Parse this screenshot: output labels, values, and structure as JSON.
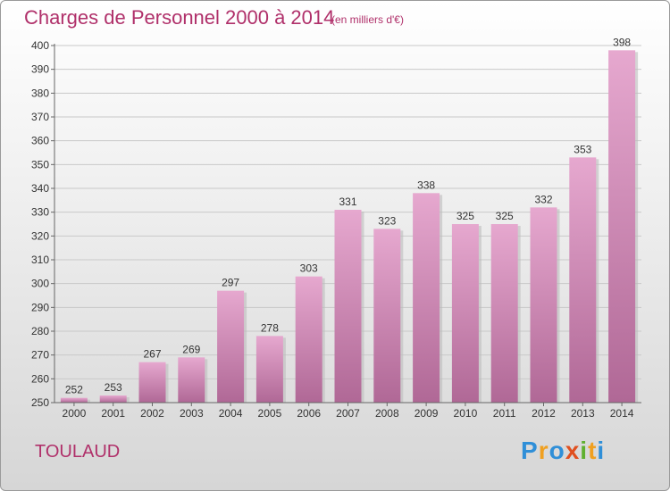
{
  "header": {
    "title": "Charges de Personnel 2000 à 2014",
    "subtitle": "(en milliers d'€)"
  },
  "footer": {
    "place": "TOULAUD",
    "logo_letters": [
      {
        "char": "P",
        "color": "#2f8fd8"
      },
      {
        "char": "r",
        "color": "#f0a020"
      },
      {
        "char": "o",
        "color": "#2f8fd8"
      },
      {
        "char": "x",
        "color": "#e05020"
      },
      {
        "char": "i",
        "color": "#60b030"
      },
      {
        "char": "t",
        "color": "#f0a020"
      },
      {
        "char": "i",
        "color": "#2f8fd8"
      }
    ]
  },
  "chart_data": {
    "type": "bar",
    "categories": [
      "2000",
      "2001",
      "2002",
      "2003",
      "2004",
      "2005",
      "2006",
      "2007",
      "2008",
      "2009",
      "2010",
      "2011",
      "2012",
      "2013",
      "2014"
    ],
    "values": [
      252,
      253,
      267,
      269,
      297,
      278,
      303,
      331,
      323,
      338,
      325,
      325,
      332,
      353,
      398
    ],
    "title": "Charges de Personnel 2000 à 2014",
    "subtitle": "(en milliers d'€)",
    "xlabel": "",
    "ylabel": "",
    "ylim": [
      250,
      400
    ],
    "yticks": [
      250,
      260,
      270,
      280,
      290,
      300,
      310,
      320,
      330,
      340,
      350,
      360,
      370,
      380,
      390,
      400
    ],
    "grid": true,
    "bar_color_top": "#e6a8cf",
    "bar_color_bottom": "#b06896"
  }
}
